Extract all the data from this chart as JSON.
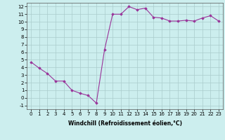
{
  "x": [
    0,
    1,
    2,
    3,
    4,
    5,
    6,
    7,
    8,
    9,
    10,
    11,
    12,
    13,
    14,
    15,
    16,
    17,
    18,
    19,
    20,
    21,
    22,
    23
  ],
  "y": [
    4.7,
    3.9,
    3.2,
    2.2,
    2.2,
    1.0,
    0.6,
    0.3,
    -0.7,
    6.3,
    11.0,
    11.0,
    12.0,
    11.6,
    11.8,
    10.6,
    10.5,
    10.1,
    10.1,
    10.2,
    10.1,
    10.5,
    10.8,
    10.1
  ],
  "line_color": "#993399",
  "marker": "D",
  "marker_size": 1.8,
  "linewidth": 0.8,
  "xlabel": "Windchill (Refroidissement éolien,°C)",
  "xlabel_fontsize": 5.5,
  "ylabel_ticks": [
    -1,
    0,
    1,
    2,
    3,
    4,
    5,
    6,
    7,
    8,
    9,
    10,
    11,
    12
  ],
  "xticks": [
    0,
    1,
    2,
    3,
    4,
    5,
    6,
    7,
    8,
    9,
    10,
    11,
    12,
    13,
    14,
    15,
    16,
    17,
    18,
    19,
    20,
    21,
    22,
    23
  ],
  "ylim": [
    -1.5,
    12.5
  ],
  "xlim": [
    -0.5,
    23.5
  ],
  "bg_color": "#cceeee",
  "grid_color": "#aacccc",
  "tick_fontsize": 5.0,
  "xlabel_fontweight": "bold"
}
